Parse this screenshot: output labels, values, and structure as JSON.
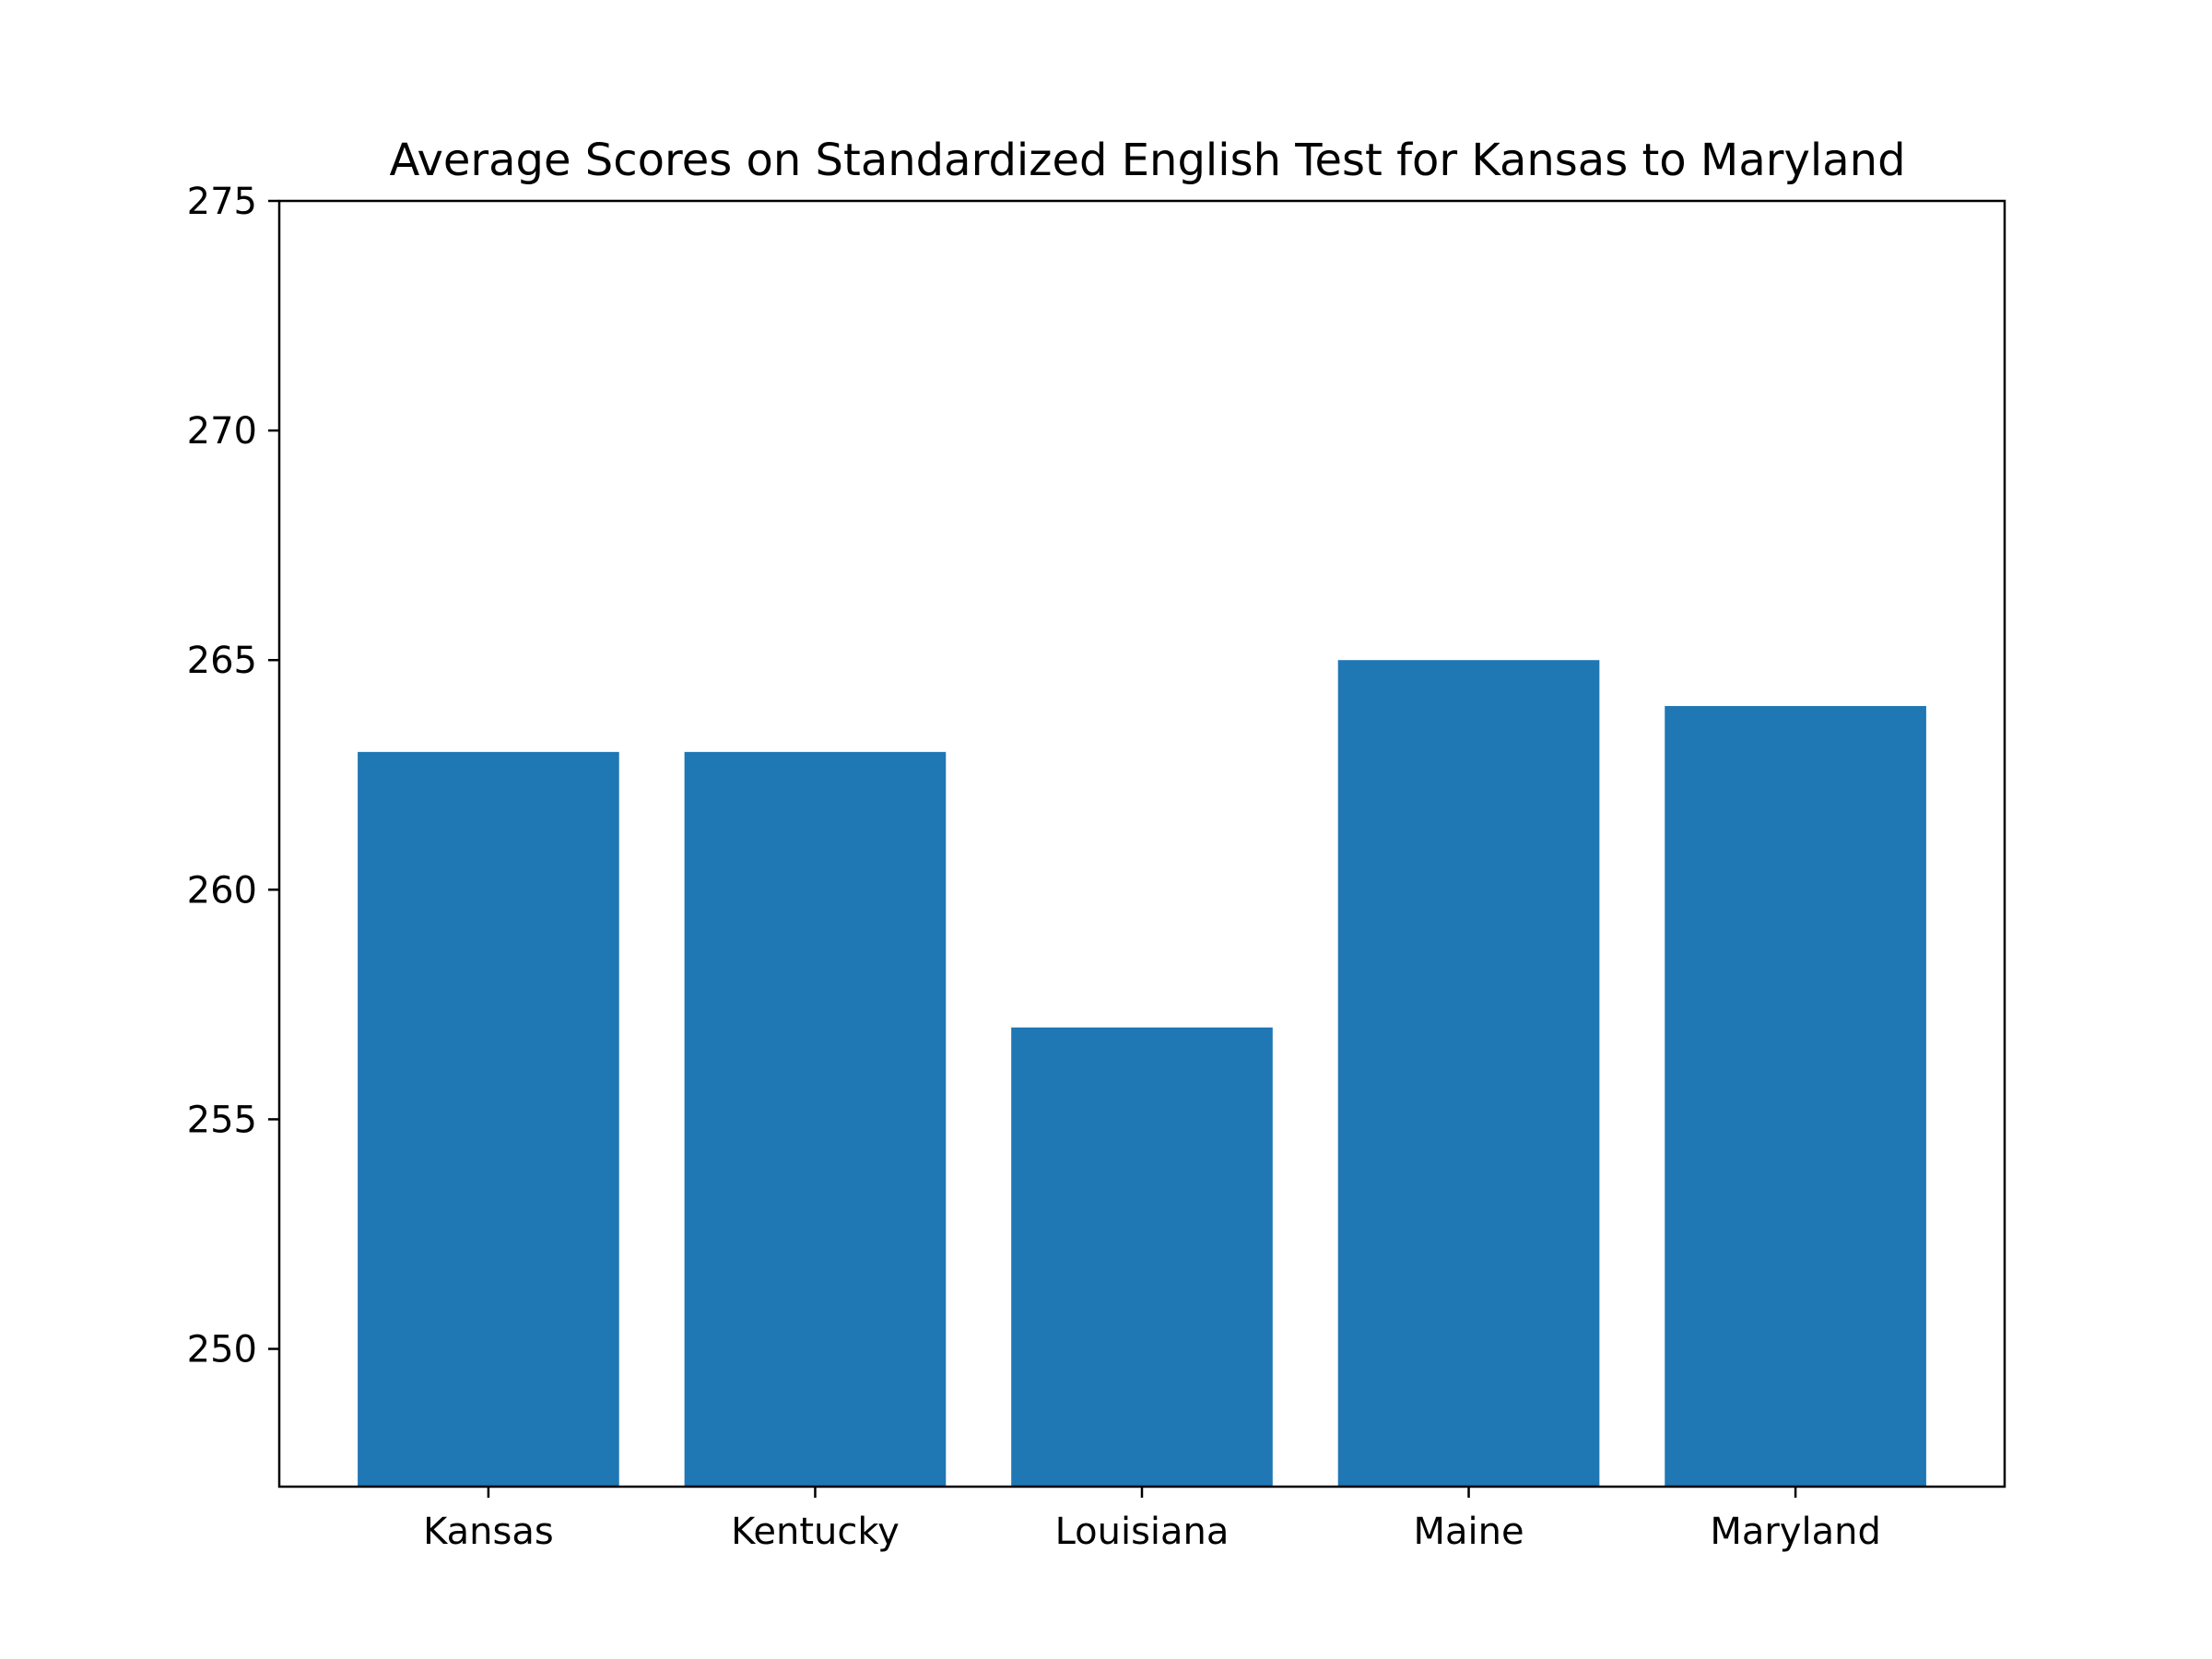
{
  "chart_data": {
    "type": "bar",
    "title": "Average Scores on Standardized English Test for Kansas to Maryland",
    "xlabel": "",
    "ylabel": "",
    "categories": [
      "Kansas",
      "Kentucky",
      "Louisiana",
      "Maine",
      "Maryland"
    ],
    "values": [
      263,
      263,
      257,
      265,
      264
    ],
    "ylim": [
      247,
      275
    ],
    "yticks": [
      250,
      255,
      260,
      265,
      270,
      275
    ],
    "grid": false,
    "legend": "none",
    "bar_color": "#1f77b4"
  }
}
